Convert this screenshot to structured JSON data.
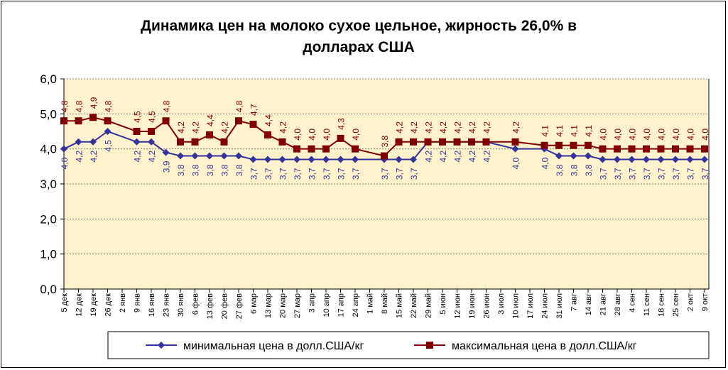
{
  "chart_data": {
    "type": "line",
    "title": "Динамика цен на молоко сухое цельное, жирность 26,0%  в долларах США",
    "title_lines": [
      "Динамика цен на молоко сухое цельное, жирность 26,0%  в",
      "долларах США"
    ],
    "xlabel": "",
    "ylabel": "",
    "ylim": [
      0,
      6
    ],
    "yticks": [
      "0,0",
      "1,0",
      "2,0",
      "3,0",
      "4,0",
      "5,0",
      "6,0"
    ],
    "grid": true,
    "legend_position": "bottom",
    "categories": [
      "5 дек",
      "12 дек",
      "19 дек",
      "26 дек",
      "2 янв",
      "9 янв",
      "16 янв",
      "23 янв",
      "30 янв",
      "6 фев",
      "13 фев",
      "20 фев",
      "27 фев",
      "6 мар",
      "13 мар",
      "20 мар",
      "27 мар",
      "3 апр",
      "10 апр",
      "17 апр",
      "24 апр",
      "1 май",
      "8 май",
      "15 май",
      "22 май",
      "29 май",
      "5 июн",
      "12 июн",
      "19 июн",
      "26 июн",
      "3 июл",
      "10 июл",
      "17 июл",
      "24 июл",
      "31 июл",
      "7 авг",
      "14 авг",
      "21 авг",
      "28 авг",
      "4 сен",
      "11 сен",
      "18 сен",
      "25 сен",
      "2 окт",
      "9 окт"
    ],
    "series": [
      {
        "name": "минимальная цена в долл.США/кг",
        "color": "#333399",
        "marker": "diamond",
        "values": [
          4.0,
          4.2,
          4.2,
          4.5,
          null,
          4.2,
          4.2,
          3.9,
          3.8,
          3.8,
          3.8,
          3.8,
          3.8,
          3.7,
          3.7,
          3.7,
          3.7,
          3.7,
          3.7,
          3.7,
          3.7,
          null,
          3.7,
          3.7,
          3.7,
          4.2,
          4.2,
          4.2,
          4.2,
          4.2,
          null,
          4.0,
          null,
          4.0,
          3.8,
          3.8,
          3.8,
          3.7,
          3.7,
          3.7,
          3.7,
          3.7,
          3.7,
          3.7,
          3.7
        ]
      },
      {
        "name": "максимальная цена в долл.США/кг",
        "color": "#800000",
        "marker": "square",
        "values": [
          4.8,
          4.8,
          4.9,
          4.8,
          null,
          4.5,
          4.5,
          4.8,
          4.2,
          4.2,
          4.4,
          4.2,
          4.8,
          4.7,
          4.4,
          4.2,
          4.0,
          4.0,
          4.0,
          4.3,
          4.0,
          null,
          3.8,
          4.2,
          4.2,
          4.2,
          4.2,
          4.2,
          4.2,
          4.2,
          null,
          4.2,
          null,
          4.1,
          4.1,
          4.1,
          4.1,
          4.0,
          4.0,
          4.0,
          4.0,
          4.0,
          4.0,
          4.0,
          4.0
        ]
      }
    ]
  },
  "colors": {
    "plot_background": "#FFF2CC",
    "grid": "#808080"
  }
}
